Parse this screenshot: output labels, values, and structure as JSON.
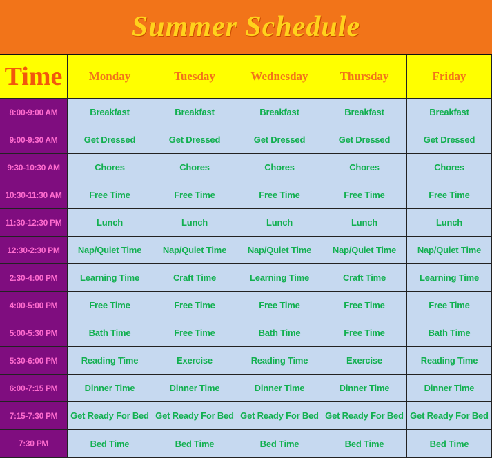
{
  "title": "Summer Schedule",
  "header": {
    "time": "Time",
    "days": [
      "Monday",
      "Tuesday",
      "Wednesday",
      "Thursday",
      "Friday"
    ]
  },
  "rows": [
    {
      "time": "8:00-9:00 AM",
      "activities": [
        "Breakfast",
        "Breakfast",
        "Breakfast",
        "Breakfast",
        "Breakfast"
      ]
    },
    {
      "time": "9:00-9:30 AM",
      "activities": [
        "Get Dressed",
        "Get Dressed",
        "Get Dressed",
        "Get Dressed",
        "Get Dressed"
      ]
    },
    {
      "time": "9:30-10:30 AM",
      "activities": [
        "Chores",
        "Chores",
        "Chores",
        "Chores",
        "Chores"
      ]
    },
    {
      "time": "10:30-11:30 AM",
      "activities": [
        "Free Time",
        "Free Time",
        "Free Time",
        "Free Time",
        "Free Time"
      ]
    },
    {
      "time": "11:30-12:30 PM",
      "activities": [
        "Lunch",
        "Lunch",
        "Lunch",
        "Lunch",
        "Lunch"
      ]
    },
    {
      "time": "12:30-2:30 PM",
      "activities": [
        "Nap/Quiet Time",
        "Nap/Quiet Time",
        "Nap/Quiet Time",
        "Nap/Quiet Time",
        "Nap/Quiet Time"
      ]
    },
    {
      "time": "2:30-4:00 PM",
      "activities": [
        "Learning Time",
        "Craft Time",
        "Learning Time",
        "Craft Time",
        "Learning Time"
      ]
    },
    {
      "time": "4:00-5:00 PM",
      "activities": [
        "Free Time",
        "Free Time",
        "Free Time",
        "Free Time",
        "Free Time"
      ]
    },
    {
      "time": "5:00-5:30 PM",
      "activities": [
        "Bath Time",
        "Free Time",
        "Bath Time",
        "Free Time",
        "Bath Time"
      ]
    },
    {
      "time": "5:30-6:00 PM",
      "activities": [
        "Reading Time",
        "Exercise",
        "Reading Time",
        "Exercise",
        "Reading Time"
      ]
    },
    {
      "time": "6:00-7:15 PM",
      "activities": [
        "Dinner Time",
        "Dinner Time",
        "Dinner Time",
        "Dinner Time",
        "Dinner Time"
      ]
    },
    {
      "time": "7:15-7:30 PM",
      "activities": [
        "Get Ready For Bed",
        "Get Ready For Bed",
        "Get Ready For Bed",
        "Get Ready For Bed",
        "Get Ready For Bed"
      ]
    },
    {
      "time": "7:30 PM",
      "activities": [
        "Bed Time",
        "Bed Time",
        "Bed Time",
        "Bed Time",
        "Bed Time"
      ]
    }
  ]
}
